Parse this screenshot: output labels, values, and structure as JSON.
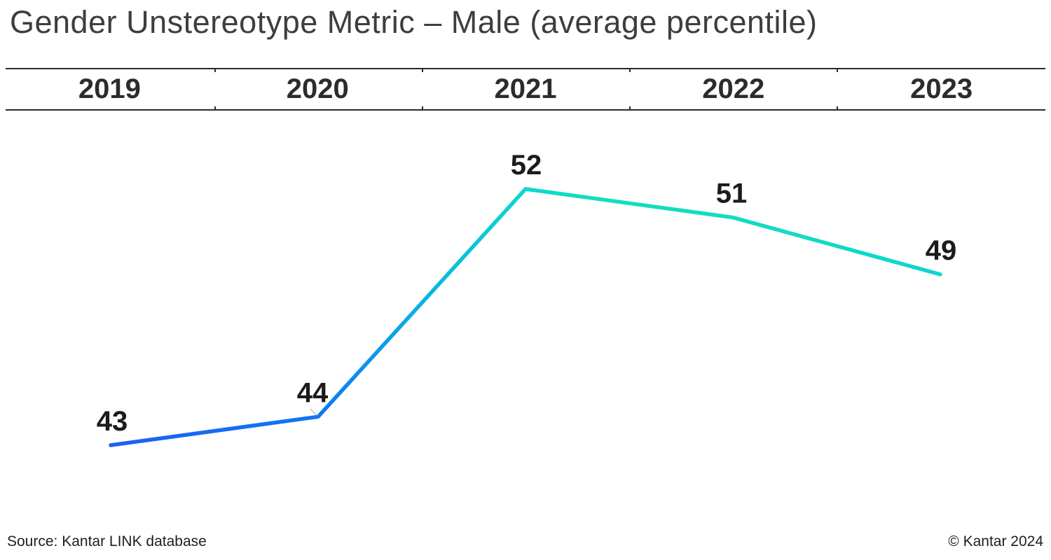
{
  "title": "Gender Unstereotype Metric – Male  (average percentile)",
  "footer": {
    "source": "Source: Kantar LINK database",
    "copyright": "© Kantar 2024"
  },
  "chart_data": {
    "type": "line",
    "categories": [
      "2019",
      "2020",
      "2021",
      "2022",
      "2023"
    ],
    "values": [
      43,
      44,
      52,
      51,
      49
    ],
    "title": "Gender Unstereotype Metric – Male (average percentile)",
    "xlabel": "",
    "ylabel": "",
    "series_name": "Male average percentile",
    "data_labels_position": "above-points",
    "legend": "none",
    "grid": "off",
    "value_axis_visible": false,
    "category_axis_position": "top-band",
    "line_gradient": {
      "start_color": "#1e60f2",
      "mid_color": "#0ab4e4",
      "end_color": "#0cd6ce"
    },
    "label_color": "#1b1b1b",
    "rule_color": "#2b2b2b"
  }
}
